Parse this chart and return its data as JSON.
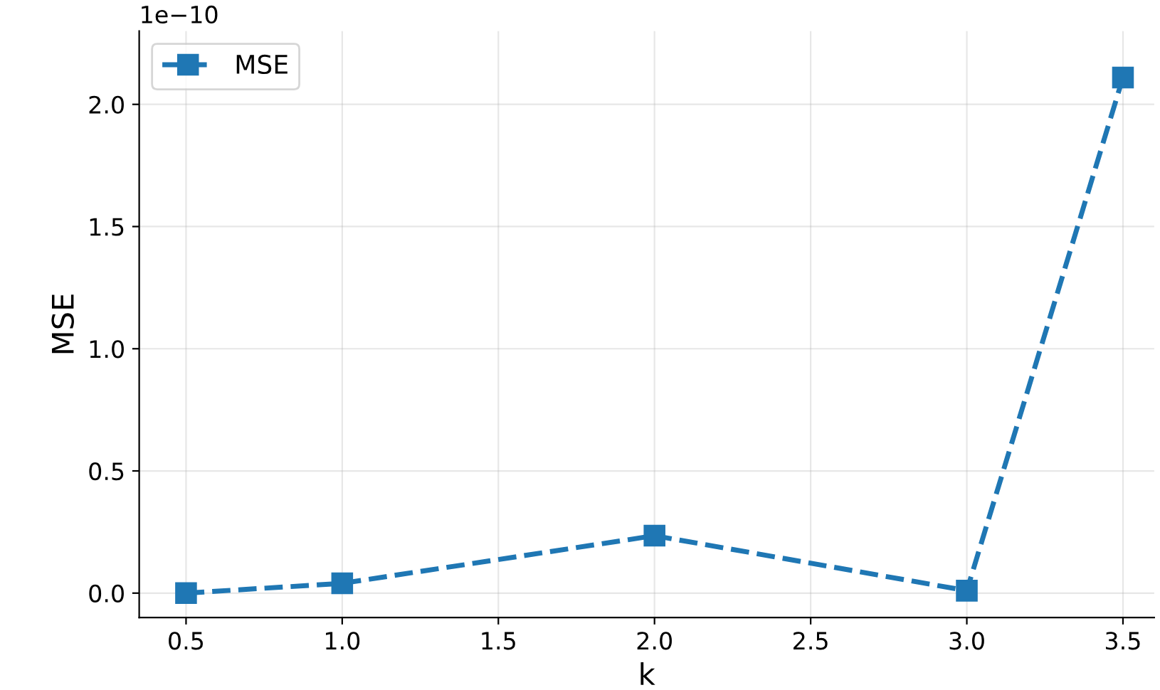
{
  "chart_data": {
    "type": "line",
    "xlabel": "k",
    "ylabel": "MSE",
    "x": [
      0.5,
      1.0,
      2.0,
      3.0,
      3.5
    ],
    "series": [
      {
        "name": "MSE",
        "color": "#1f77b4",
        "values": [
          0.0,
          0.04,
          0.235,
          0.01,
          2.11
        ]
      }
    ],
    "xlim": [
      0.35,
      3.6
    ],
    "xticks": [
      0.5,
      {
        "value": 1,
        "label": "1.0"
      },
      1.5,
      {
        "value": 2,
        "label": "2.0"
      },
      2.5,
      {
        "value": 3,
        "label": "3.0"
      },
      3.5
    ],
    "ylim": [
      -0.1,
      2.3
    ],
    "yticks": [
      {
        "value": 0,
        "label": "0.0"
      },
      0.5,
      {
        "value": 1,
        "label": "1.0"
      },
      1.5,
      {
        "value": 2,
        "label": "2.0"
      }
    ],
    "annotations": [
      "1e−10"
    ],
    "grid": true,
    "legend": "top left",
    "marker": "square",
    "line_style": "dashed"
  }
}
